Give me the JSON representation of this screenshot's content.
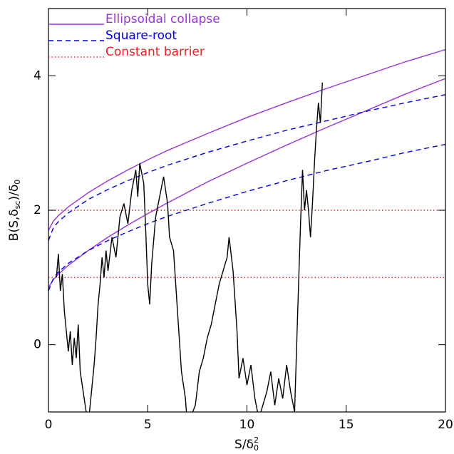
{
  "chart_data": {
    "type": "line",
    "xlabel": [
      "S/δ",
      "0",
      "2"
    ],
    "ylabel": [
      "B(S,δ",
      "sc",
      ")/δ",
      "0"
    ],
    "xlim": [
      0,
      20
    ],
    "ylim": [
      -1,
      5
    ],
    "xticks": [
      0,
      5,
      10,
      15,
      20
    ],
    "yticks": [
      0,
      2,
      4
    ],
    "series": [
      {
        "name": "Ellipsoidal collapse",
        "color": "#9933dd",
        "dash": "none",
        "x": [
          0,
          0.25,
          0.5,
          1,
          2,
          3,
          4,
          5,
          6,
          8,
          10,
          12,
          14,
          16,
          18,
          20
        ],
        "curves": [
          [
            1.7,
            1.84,
            1.92,
            2.05,
            2.26,
            2.44,
            2.6,
            2.75,
            2.89,
            3.14,
            3.38,
            3.6,
            3.81,
            4.01,
            4.21,
            4.39
          ],
          [
            0.85,
            0.97,
            1.05,
            1.18,
            1.4,
            1.6,
            1.78,
            1.95,
            2.11,
            2.42,
            2.7,
            2.97,
            3.23,
            3.48,
            3.73,
            3.96
          ]
        ]
      },
      {
        "name": "Square-root",
        "color": "#0000ee",
        "dash": "7,5",
        "x": [
          0,
          0.25,
          0.5,
          1,
          2,
          3,
          4,
          5,
          6,
          8,
          10,
          12,
          14,
          16,
          18,
          20
        ],
        "curves": [
          [
            1.55,
            1.74,
            1.83,
            1.96,
            2.16,
            2.31,
            2.44,
            2.56,
            2.67,
            2.86,
            3.03,
            3.19,
            3.33,
            3.47,
            3.6,
            3.72
          ],
          [
            0.8,
            0.99,
            1.08,
            1.21,
            1.4,
            1.55,
            1.68,
            1.8,
            1.91,
            2.1,
            2.28,
            2.44,
            2.59,
            2.72,
            2.86,
            2.98
          ]
        ]
      },
      {
        "name": "Constant barrier",
        "color": "#ee2222",
        "dash": "1.5,3",
        "x": [
          0,
          20
        ],
        "curves": [
          [
            2,
            2
          ],
          [
            1,
            1
          ]
        ]
      },
      {
        "color": "#000000",
        "dash": "none",
        "x": [
          0.4,
          0.5,
          0.6,
          0.7,
          0.8,
          0.9,
          1.0,
          1.1,
          1.2,
          1.3,
          1.4,
          1.5,
          1.6,
          1.7,
          1.8,
          1.9,
          2.0,
          2.2,
          2.3,
          2.4,
          2.5,
          2.6,
          2.7,
          2.8,
          2.9,
          3.0,
          3.2,
          3.4,
          3.6,
          3.8,
          4.0,
          4.2,
          4.4,
          4.5,
          4.6,
          4.8,
          4.9,
          5.0,
          5.1,
          5.2,
          5.4,
          5.6,
          5.8,
          6.0,
          6.1,
          6.3,
          6.5,
          6.7,
          6.9,
          7.0,
          7.4,
          7.6,
          7.8,
          8.0,
          8.2,
          8.4,
          8.6,
          8.8,
          9.0,
          9.1,
          9.3,
          9.5,
          9.6,
          9.8,
          10.0,
          10.2,
          10.4,
          10.6,
          11.0,
          11.2,
          11.4,
          11.6,
          11.8,
          12.0,
          12.2,
          12.4,
          12.6,
          12.7,
          12.8,
          12.9,
          13.0,
          13.1,
          13.2,
          13.3,
          13.4,
          13.5,
          13.6,
          13.7,
          13.8
        ],
        "curves": [
          [
            1.0,
            1.35,
            0.8,
            1.05,
            0.5,
            0.2,
            -0.1,
            0.2,
            -0.3,
            0.1,
            -0.2,
            0.3,
            -0.4,
            -0.6,
            -0.8,
            -1.0,
            -1.2,
            -0.6,
            -0.3,
            0.1,
            0.6,
            0.9,
            1.3,
            1.0,
            1.4,
            1.1,
            1.6,
            1.3,
            1.9,
            2.1,
            1.8,
            2.3,
            2.6,
            2.2,
            2.7,
            2.4,
            1.7,
            0.9,
            0.6,
            1.2,
            1.9,
            2.2,
            2.5,
            2.1,
            1.6,
            1.4,
            0.5,
            -0.4,
            -0.8,
            -1.2,
            -0.9,
            -0.4,
            -0.2,
            0.1,
            0.3,
            0.6,
            0.9,
            1.1,
            1.3,
            1.6,
            1.1,
            0.2,
            -0.5,
            -0.2,
            -0.6,
            -0.3,
            -0.8,
            -1.1,
            -0.7,
            -0.4,
            -0.9,
            -0.5,
            -0.8,
            -0.3,
            -0.7,
            -1.0,
            0.9,
            1.8,
            2.6,
            2.0,
            2.3,
            2.0,
            1.6,
            2.1,
            2.7,
            3.2,
            3.6,
            3.3,
            3.9
          ]
        ]
      }
    ]
  }
}
